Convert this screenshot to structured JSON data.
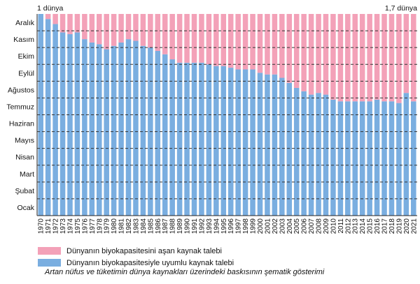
{
  "chart_data": {
    "type": "bar",
    "stacked": true,
    "title": "",
    "xlabel": "",
    "ylabel": "",
    "top_left_label": "1 dünya",
    "top_right_label": "1,7 dünya",
    "y_tick_labels": [
      "Ocak",
      "Şubat",
      "Mart",
      "Nisan",
      "Mayıs",
      "Haziran",
      "Temmuz",
      "Ağustos",
      "Eylül",
      "Ekim",
      "Kasım",
      "Aralık"
    ],
    "ylim": [
      0,
      12
    ],
    "grid": "dashed-horizontal",
    "categories": [
      "1970",
      "1971",
      "1972",
      "1973",
      "1974",
      "1975",
      "1976",
      "1977",
      "1978",
      "1979",
      "1980",
      "1981",
      "1982",
      "1983",
      "1984",
      "1985",
      "1986",
      "1987",
      "1988",
      "1989",
      "1990",
      "1991",
      "1992",
      "1993",
      "1994",
      "1995",
      "1996",
      "1997",
      "1998",
      "1999",
      "2000",
      "2001",
      "2002",
      "2003",
      "2004",
      "2005",
      "2006",
      "2007",
      "2008",
      "2009",
      "2010",
      "2011",
      "2012",
      "2013",
      "2014",
      "2015",
      "2016",
      "2017",
      "2018",
      "2019",
      "2020",
      "2021"
    ],
    "series": [
      {
        "name": "Dünyanın biyokapasitesiyle uyumlu kaynak talebi",
        "color": "#7aaee0",
        "values": [
          12.0,
          11.7,
          11.4,
          10.9,
          10.8,
          10.9,
          10.5,
          10.3,
          10.2,
          9.9,
          10.1,
          10.3,
          10.5,
          10.4,
          10.1,
          10.0,
          9.8,
          9.6,
          9.3,
          9.1,
          9.1,
          9.1,
          9.1,
          9.0,
          8.9,
          8.9,
          8.8,
          8.7,
          8.7,
          8.7,
          8.5,
          8.4,
          8.4,
          8.2,
          7.9,
          7.6,
          7.4,
          7.2,
          7.3,
          7.2,
          6.9,
          6.8,
          6.8,
          6.8,
          6.8,
          6.8,
          6.9,
          6.8,
          6.8,
          6.7,
          7.3,
          6.8
        ]
      },
      {
        "name": "Dünyanın biyokapasitesini aşan kaynak talebi",
        "color": "#f3a1b8",
        "values": [
          0.0,
          0.3,
          0.6,
          1.1,
          1.2,
          1.1,
          1.5,
          1.7,
          1.8,
          2.1,
          1.9,
          1.7,
          1.5,
          1.6,
          1.9,
          2.0,
          2.2,
          2.4,
          2.7,
          2.9,
          2.9,
          2.9,
          2.9,
          3.0,
          3.1,
          3.1,
          3.2,
          3.3,
          3.3,
          3.3,
          3.5,
          3.6,
          3.6,
          3.8,
          4.1,
          4.4,
          4.6,
          4.8,
          4.7,
          4.8,
          5.1,
          5.2,
          5.2,
          5.2,
          5.2,
          5.2,
          5.1,
          5.2,
          5.2,
          5.3,
          4.7,
          5.2
        ]
      }
    ]
  },
  "legend": [
    {
      "label": "Dünyanın biyokapasitesini aşan kaynak talebi",
      "color": "#f3a1b8"
    },
    {
      "label": "Dünyanın biyokapasitesiyle uyumlu kaynak talebi",
      "color": "#7aaee0"
    }
  ],
  "caption": "Artan nüfus ve tüketimin dünya kaynakları üzerindeki baskısının şematik gösterimi"
}
